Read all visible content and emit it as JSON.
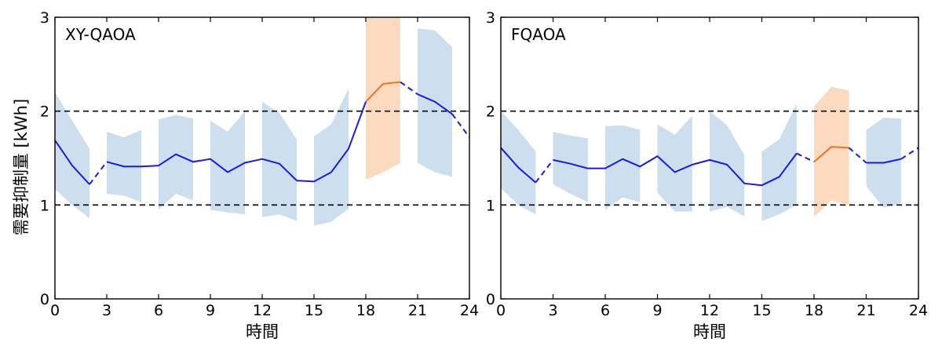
{
  "chart_data": {
    "type": "line",
    "ylabel": "需要抑制量 [kWh]",
    "xlabel": "時間",
    "xlim": [
      0,
      24
    ],
    "ylim": [
      0,
      3
    ],
    "xticks": [
      0,
      3,
      6,
      9,
      12,
      15,
      18,
      21,
      24
    ],
    "yticks": [
      0,
      1,
      2,
      3
    ],
    "reference_lines": [
      1,
      2
    ],
    "colors": {
      "line": "#1a1adf",
      "line_highlight": "#e8742c",
      "band": "#bcd3ea",
      "band_highlight": "#fbd3b4",
      "reference": "#000000"
    },
    "panels": [
      {
        "title": "XY-QAOA",
        "x": [
          0,
          1,
          2,
          3,
          4,
          5,
          6,
          7,
          8,
          9,
          10,
          11,
          12,
          13,
          14,
          15,
          16,
          17,
          18,
          19,
          20,
          21,
          22,
          23,
          24
        ],
        "y": [
          1.69,
          1.42,
          1.22,
          1.46,
          1.41,
          1.41,
          1.42,
          1.54,
          1.46,
          1.49,
          1.35,
          1.45,
          1.49,
          1.44,
          1.26,
          1.25,
          1.35,
          1.6,
          2.1,
          2.29,
          2.31,
          2.18,
          2.1,
          1.97,
          1.72
        ],
        "segments": [
          {
            "from": 0,
            "to": 2,
            "style": "solid",
            "color": "blue"
          },
          {
            "from": 2,
            "to": 3,
            "style": "dashed",
            "color": "blue"
          },
          {
            "from": 3,
            "to": 18,
            "style": "solid",
            "color": "blue"
          },
          {
            "from": 18,
            "to": 20,
            "style": "solid",
            "color": "orange"
          },
          {
            "from": 20,
            "to": 21,
            "style": "dashed",
            "color": "blue"
          },
          {
            "from": 21,
            "to": 23,
            "style": "solid",
            "color": "blue"
          },
          {
            "from": 23,
            "to": 24,
            "style": "dashed",
            "color": "blue"
          }
        ],
        "bands": [
          {
            "x": [
              0,
              1,
              2
            ],
            "upper": [
              2.2,
              1.9,
              1.6
            ],
            "lower": [
              1.17,
              1.0,
              0.86
            ],
            "color": "blue"
          },
          {
            "x": [
              3,
              4,
              5
            ],
            "upper": [
              1.78,
              1.72,
              1.8
            ],
            "lower": [
              1.12,
              1.1,
              1.03
            ],
            "color": "blue"
          },
          {
            "x": [
              6,
              7,
              8
            ],
            "upper": [
              1.91,
              1.96,
              1.92
            ],
            "lower": [
              0.95,
              1.12,
              1.05
            ],
            "color": "blue"
          },
          {
            "x": [
              9,
              10,
              11
            ],
            "upper": [
              1.9,
              1.78,
              2.0
            ],
            "lower": [
              0.95,
              0.92,
              0.9
            ],
            "color": "blue"
          },
          {
            "x": [
              12,
              13,
              14
            ],
            "upper": [
              2.1,
              1.98,
              1.7
            ],
            "lower": [
              0.87,
              0.9,
              0.83
            ],
            "color": "blue"
          },
          {
            "x": [
              15,
              16,
              17
            ],
            "upper": [
              1.73,
              1.86,
              2.24
            ],
            "lower": [
              0.78,
              0.82,
              0.96
            ],
            "color": "blue"
          },
          {
            "x": [
              18,
              19,
              20
            ],
            "upper": [
              3.0,
              3.0,
              3.0
            ],
            "lower": [
              1.27,
              1.35,
              1.45
            ],
            "color": "orange"
          },
          {
            "x": [
              21,
              22,
              23
            ],
            "upper": [
              2.88,
              2.86,
              2.68
            ],
            "lower": [
              1.45,
              1.35,
              1.3
            ],
            "color": "blue"
          }
        ]
      },
      {
        "title": "FQAOA",
        "x": [
          0,
          1,
          2,
          3,
          4,
          5,
          6,
          7,
          8,
          9,
          10,
          11,
          12,
          13,
          14,
          15,
          16,
          17,
          18,
          19,
          20,
          21,
          22,
          23,
          24
        ],
        "y": [
          1.61,
          1.4,
          1.24,
          1.48,
          1.44,
          1.39,
          1.39,
          1.49,
          1.41,
          1.52,
          1.35,
          1.43,
          1.48,
          1.43,
          1.23,
          1.21,
          1.3,
          1.55,
          1.46,
          1.62,
          1.61,
          1.45,
          1.45,
          1.49,
          1.61
        ],
        "segments": [
          {
            "from": 0,
            "to": 2,
            "style": "solid",
            "color": "blue"
          },
          {
            "from": 2,
            "to": 3,
            "style": "dashed",
            "color": "blue"
          },
          {
            "from": 3,
            "to": 17,
            "style": "solid",
            "color": "blue"
          },
          {
            "from": 17,
            "to": 18,
            "style": "dashed",
            "color": "blue"
          },
          {
            "from": 18,
            "to": 20,
            "style": "solid",
            "color": "orange"
          },
          {
            "from": 20,
            "to": 21,
            "style": "dashed",
            "color": "blue"
          },
          {
            "from": 21,
            "to": 23,
            "style": "solid",
            "color": "blue"
          },
          {
            "from": 23,
            "to": 24,
            "style": "dashed",
            "color": "blue"
          }
        ],
        "bands": [
          {
            "x": [
              0,
              1,
              2
            ],
            "upper": [
              2.0,
              1.8,
              1.57
            ],
            "lower": [
              1.18,
              1.0,
              0.9
            ],
            "color": "blue"
          },
          {
            "x": [
              3,
              4,
              5
            ],
            "upper": [
              1.78,
              1.74,
              1.71
            ],
            "lower": [
              1.22,
              1.12,
              1.03
            ],
            "color": "blue"
          },
          {
            "x": [
              6,
              7,
              8
            ],
            "upper": [
              1.84,
              1.85,
              1.8
            ],
            "lower": [
              0.95,
              1.08,
              1.03
            ],
            "color": "blue"
          },
          {
            "x": [
              9,
              10,
              11
            ],
            "upper": [
              1.86,
              1.75,
              1.95
            ],
            "lower": [
              1.13,
              0.93,
              0.93
            ],
            "color": "blue"
          },
          {
            "x": [
              12,
              13,
              14
            ],
            "upper": [
              2.0,
              1.85,
              1.53
            ],
            "lower": [
              0.93,
              0.98,
              0.88
            ],
            "color": "blue"
          },
          {
            "x": [
              15,
              16,
              17
            ],
            "upper": [
              1.57,
              1.7,
              2.08
            ],
            "lower": [
              0.83,
              0.9,
              1.0
            ],
            "color": "blue"
          },
          {
            "x": [
              18,
              19,
              20
            ],
            "upper": [
              2.05,
              2.26,
              2.22
            ],
            "lower": [
              0.87,
              1.05,
              1.0
            ],
            "color": "orange"
          },
          {
            "x": [
              21,
              22,
              23
            ],
            "upper": [
              1.8,
              1.93,
              1.92
            ],
            "lower": [
              1.2,
              0.97,
              1.02
            ],
            "color": "blue"
          }
        ]
      }
    ]
  }
}
